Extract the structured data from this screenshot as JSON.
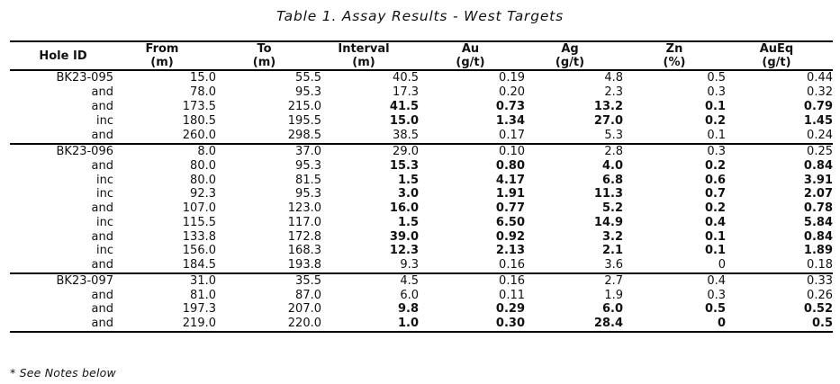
{
  "title": "Table 1. Assay Results - West Targets",
  "footnote": "* See Notes below",
  "table": {
    "columns": [
      {
        "label": "Hole ID",
        "unit": ""
      },
      {
        "label": "From",
        "unit": "(m)"
      },
      {
        "label": "To",
        "unit": "(m)"
      },
      {
        "label": "Interval",
        "unit": "(m)"
      },
      {
        "label": "Au",
        "unit": "(g/t)"
      },
      {
        "label": "Ag",
        "unit": "(g/t)"
      },
      {
        "label": "Zn",
        "unit": "(%)"
      },
      {
        "label": "AuEq",
        "unit": "(g/t)"
      }
    ],
    "groups": [
      {
        "rows": [
          {
            "cells": [
              "BK23-095",
              "15.0",
              "55.5",
              "40.5",
              "0.19",
              "4.8",
              "0.5",
              "0.44"
            ],
            "bold": false
          },
          {
            "cells": [
              "and",
              "78.0",
              "95.3",
              "17.3",
              "0.20",
              "2.3",
              "0.3",
              "0.32"
            ],
            "bold": false
          },
          {
            "cells": [
              "and",
              "173.5",
              "215.0",
              "41.5",
              "0.73",
              "13.2",
              "0.1",
              "0.79"
            ],
            "bold": true
          },
          {
            "cells": [
              "inc",
              "180.5",
              "195.5",
              "15.0",
              "1.34",
              "27.0",
              "0.2",
              "1.45"
            ],
            "bold": true
          },
          {
            "cells": [
              "and",
              "260.0",
              "298.5",
              "38.5",
              "0.17",
              "5.3",
              "0.1",
              "0.24"
            ],
            "bold": false
          }
        ]
      },
      {
        "rows": [
          {
            "cells": [
              "BK23-096",
              "8.0",
              "37.0",
              "29.0",
              "0.10",
              "2.8",
              "0.3",
              "0.25"
            ],
            "bold": false
          },
          {
            "cells": [
              "and",
              "80.0",
              "95.3",
              "15.3",
              "0.80",
              "4.0",
              "0.2",
              "0.84"
            ],
            "bold": true
          },
          {
            "cells": [
              "inc",
              "80.0",
              "81.5",
              "1.5",
              "4.17",
              "6.8",
              "0.6",
              "3.91"
            ],
            "bold": true
          },
          {
            "cells": [
              "inc",
              "92.3",
              "95.3",
              "3.0",
              "1.91",
              "11.3",
              "0.7",
              "2.07"
            ],
            "bold": true
          },
          {
            "cells": [
              "and",
              "107.0",
              "123.0",
              "16.0",
              "0.77",
              "5.2",
              "0.2",
              "0.78"
            ],
            "bold": true
          },
          {
            "cells": [
              "inc",
              "115.5",
              "117.0",
              "1.5",
              "6.50",
              "14.9",
              "0.4",
              "5.84"
            ],
            "bold": true
          },
          {
            "cells": [
              "and",
              "133.8",
              "172.8",
              "39.0",
              "0.92",
              "3.2",
              "0.1",
              "0.84"
            ],
            "bold": true
          },
          {
            "cells": [
              "inc",
              "156.0",
              "168.3",
              "12.3",
              "2.13",
              "2.1",
              "0.1",
              "1.89"
            ],
            "bold": true
          },
          {
            "cells": [
              "and",
              "184.5",
              "193.8",
              "9.3",
              "0.16",
              "3.6",
              "0",
              "0.18"
            ],
            "bold": false
          }
        ]
      },
      {
        "rows": [
          {
            "cells": [
              "BK23-097",
              "31.0",
              "35.5",
              "4.5",
              "0.16",
              "2.7",
              "0.4",
              "0.33"
            ],
            "bold": false
          },
          {
            "cells": [
              "and",
              "81.0",
              "87.0",
              "6.0",
              "0.11",
              "1.9",
              "0.3",
              "0.26"
            ],
            "bold": false
          },
          {
            "cells": [
              "and",
              "197.3",
              "207.0",
              "9.8",
              "0.29",
              "6.0",
              "0.5",
              "0.52"
            ],
            "bold": true
          },
          {
            "cells": [
              "and",
              "219.0",
              "220.0",
              "1.0",
              "0.30",
              "28.4",
              "0",
              "0.5"
            ],
            "bold": true
          }
        ]
      }
    ]
  }
}
